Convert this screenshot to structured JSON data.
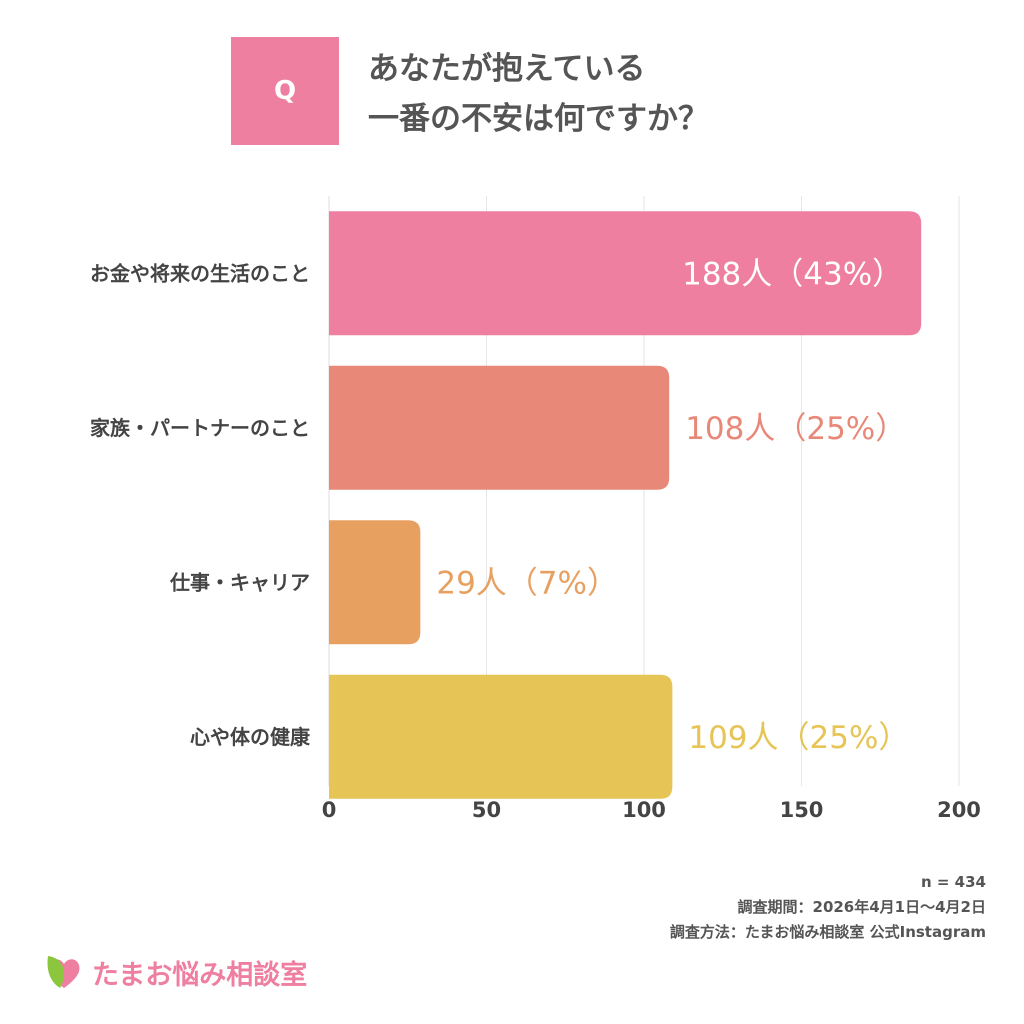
{
  "question": {
    "badge": "Q",
    "line1": "あなたが抱えている",
    "line2": "一番の不安は何ですか？"
  },
  "chart_data": {
    "type": "bar",
    "orientation": "horizontal",
    "categories": [
      "お金や将来の生活のこと",
      "家族・パートナーのこと",
      "仕事・キャリア",
      "心や体の健康"
    ],
    "values": [
      188,
      108,
      29,
      109
    ],
    "data_labels": [
      "188人（43%）",
      "108人（25%）",
      "29人（7%）",
      "109人（25%）"
    ],
    "colors": [
      "#EE7FA0",
      "#E88878",
      "#E8A060",
      "#E6C455"
    ],
    "xlim": [
      0,
      200
    ],
    "xticks": [
      "0",
      "50",
      "100",
      "150",
      "200"
    ],
    "grid": true
  },
  "notes": {
    "n": "n = 434",
    "period": "調査期間：2026年4月1日〜4月2日",
    "method": "調査方法：たまお悩み相談室 公式Instagram"
  },
  "logo": {
    "text": "たまお悩み相談室"
  }
}
